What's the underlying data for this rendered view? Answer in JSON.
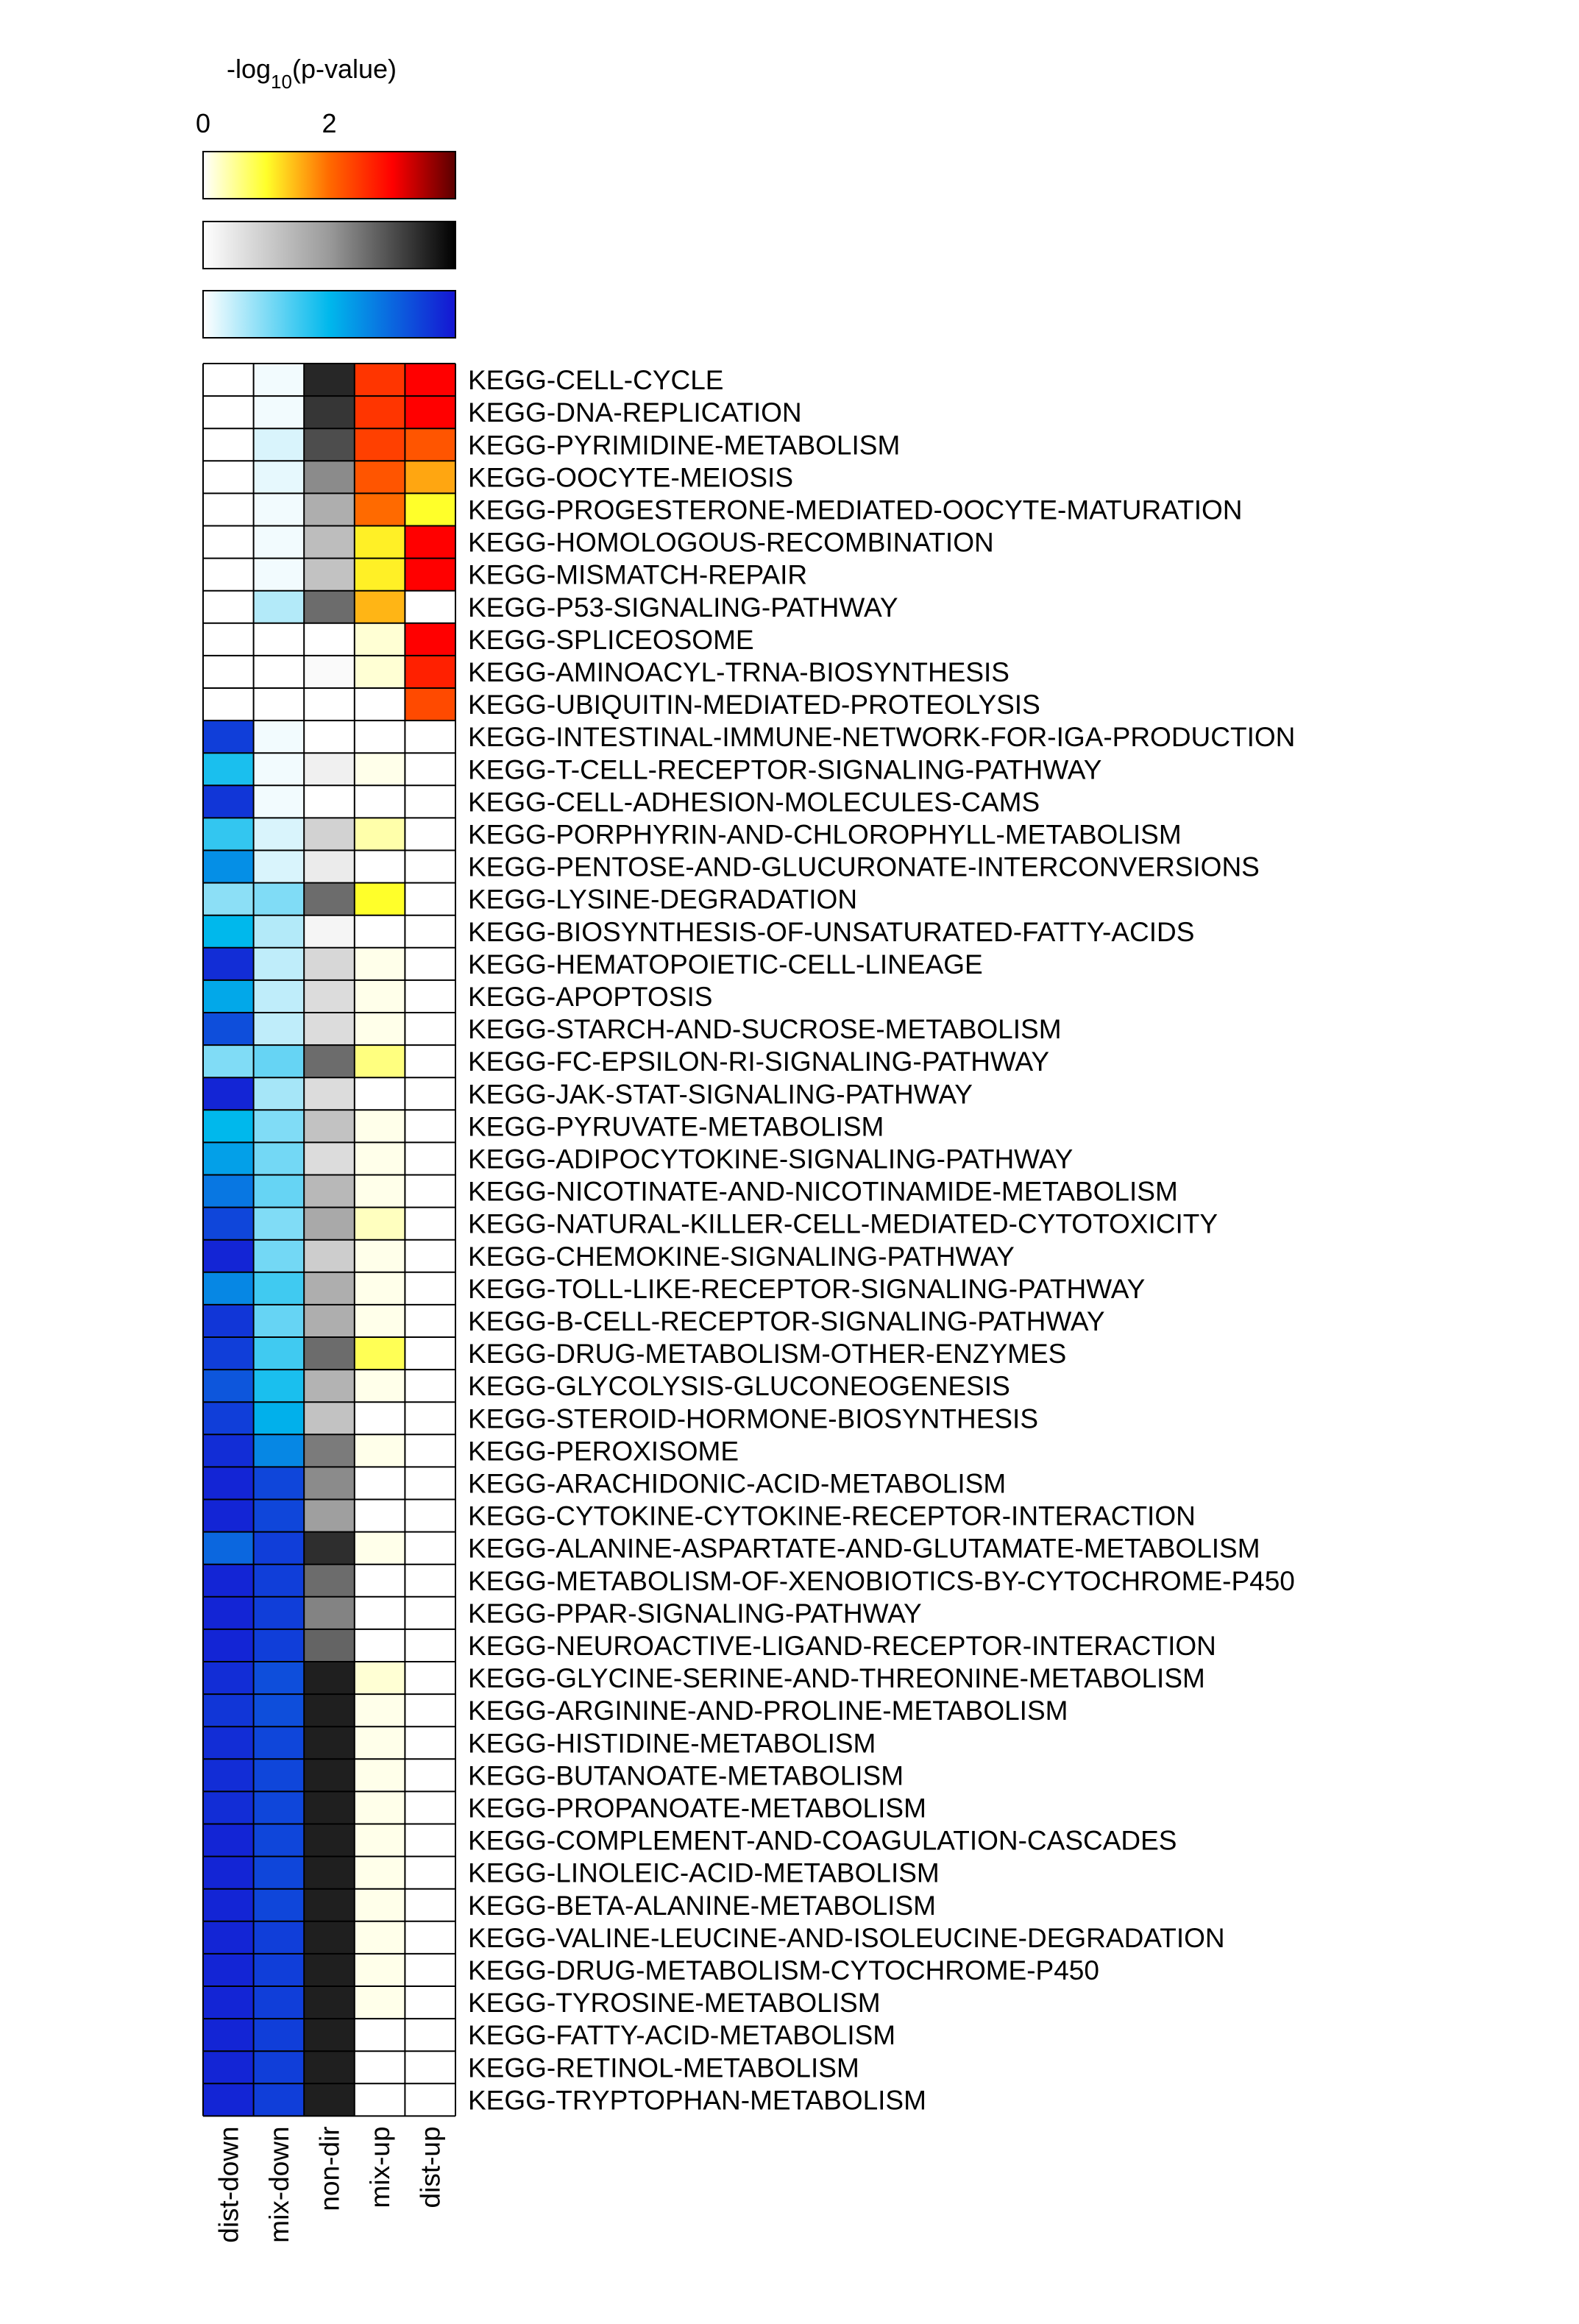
{
  "chart_data": {
    "type": "heatmap",
    "legend_title_prefix": "-log",
    "legend_title_sub": "10",
    "legend_title_suffix": "(p-value)",
    "legend_ticks": [
      "0",
      "2"
    ],
    "legend_max": 4,
    "scales": {
      "warm": [
        "#ffffff",
        "#ffff2a",
        "#ff6a00",
        "#ff0000",
        "#5a0000"
      ],
      "gray": [
        "#ffffff",
        "#9a9a9a",
        "#000000"
      ],
      "blue": [
        "#ffffff",
        "#00b8ec",
        "#1515d2"
      ]
    },
    "column_scales": [
      "blue",
      "blue",
      "gray",
      "warm",
      "warm"
    ],
    "columns": [
      "dist-down",
      "mix-down",
      "non-dir",
      "mix-up",
      "dist-up"
    ],
    "rows": [
      "KEGG-CELL-CYCLE",
      "KEGG-DNA-REPLICATION",
      "KEGG-PYRIMIDINE-METABOLISM",
      "KEGG-OOCYTE-MEIOSIS",
      "KEGG-PROGESTERONE-MEDIATED-OOCYTE-MATURATION",
      "KEGG-HOMOLOGOUS-RECOMBINATION",
      "KEGG-MISMATCH-REPAIR",
      "KEGG-P53-SIGNALING-PATHWAY",
      "KEGG-SPLICEOSOME",
      "KEGG-AMINOACYL-TRNA-BIOSYNTHESIS",
      "KEGG-UBIQUITIN-MEDIATED-PROTEOLYSIS",
      "KEGG-INTESTINAL-IMMUNE-NETWORK-FOR-IGA-PRODUCTION",
      "KEGG-T-CELL-RECEPTOR-SIGNALING-PATHWAY",
      "KEGG-CELL-ADHESION-MOLECULES-CAMS",
      "KEGG-PORPHYRIN-AND-CHLOROPHYLL-METABOLISM",
      "KEGG-PENTOSE-AND-GLUCURONATE-INTERCONVERSIONS",
      "KEGG-LYSINE-DEGRADATION",
      "KEGG-BIOSYNTHESIS-OF-UNSATURATED-FATTY-ACIDS",
      "KEGG-HEMATOPOIETIC-CELL-LINEAGE",
      "KEGG-APOPTOSIS",
      "KEGG-STARCH-AND-SUCROSE-METABOLISM",
      "KEGG-FC-EPSILON-RI-SIGNALING-PATHWAY",
      "KEGG-JAK-STAT-SIGNALING-PATHWAY",
      "KEGG-PYRUVATE-METABOLISM",
      "KEGG-ADIPOCYTOKINE-SIGNALING-PATHWAY",
      "KEGG-NICOTINATE-AND-NICOTINAMIDE-METABOLISM",
      "KEGG-NATURAL-KILLER-CELL-MEDIATED-CYTOTOXICITY",
      "KEGG-CHEMOKINE-SIGNALING-PATHWAY",
      "KEGG-TOLL-LIKE-RECEPTOR-SIGNALING-PATHWAY",
      "KEGG-B-CELL-RECEPTOR-SIGNALING-PATHWAY",
      "KEGG-DRUG-METABOLISM-OTHER-ENZYMES",
      "KEGG-GLYCOLYSIS-GLUCONEOGENESIS",
      "KEGG-STEROID-HORMONE-BIOSYNTHESIS",
      "KEGG-PEROXISOME",
      "KEGG-ARACHIDONIC-ACID-METABOLISM",
      "KEGG-CYTOKINE-CYTOKINE-RECEPTOR-INTERACTION",
      "KEGG-ALANINE-ASPARTATE-AND-GLUTAMATE-METABOLISM",
      "KEGG-METABOLISM-OF-XENOBIOTICS-BY-CYTOCHROME-P450",
      "KEGG-PPAR-SIGNALING-PATHWAY",
      "KEGG-NEUROACTIVE-LIGAND-RECEPTOR-INTERACTION",
      "KEGG-GLYCINE-SERINE-AND-THREONINE-METABOLISM",
      "KEGG-ARGININE-AND-PROLINE-METABOLISM",
      "KEGG-HISTIDINE-METABOLISM",
      "KEGG-BUTANOATE-METABOLISM",
      "KEGG-PROPANOATE-METABOLISM",
      "KEGG-COMPLEMENT-AND-COAGULATION-CASCADES",
      "KEGG-LINOLEIC-ACID-METABOLISM",
      "KEGG-BETA-ALANINE-METABOLISM",
      "KEGG-VALINE-LEUCINE-AND-ISOLEUCINE-DEGRADATION",
      "KEGG-DRUG-METABOLISM-CYTOCHROME-P450",
      "KEGG-TYROSINE-METABOLISM",
      "KEGG-FATTY-ACID-METABOLISM",
      "KEGG-RETINOL-METABOLISM",
      "KEGG-TRYPTOPHAN-METABOLISM"
    ],
    "values": [
      [
        0.0,
        0.1,
        3.5,
        2.5,
        3.0
      ],
      [
        0.0,
        0.1,
        3.3,
        2.5,
        3.0
      ],
      [
        0.0,
        0.3,
        3.0,
        2.4,
        2.2
      ],
      [
        0.0,
        0.2,
        2.2,
        2.2,
        1.6
      ],
      [
        0.0,
        0.1,
        1.6,
        2.0,
        1.0
      ],
      [
        0.0,
        0.1,
        1.3,
        1.1,
        3.0
      ],
      [
        0.0,
        0.1,
        1.2,
        1.1,
        3.0
      ],
      [
        0.0,
        0.6,
        2.6,
        1.5,
        0.0
      ],
      [
        0.0,
        0.0,
        0.0,
        0.2,
        3.0
      ],
      [
        0.0,
        0.0,
        0.1,
        0.2,
        2.7
      ],
      [
        0.0,
        0.0,
        0.0,
        0.0,
        2.3
      ],
      [
        3.5,
        0.1,
        0.0,
        0.0,
        0.0
      ],
      [
        1.8,
        0.1,
        0.3,
        0.1,
        0.0
      ],
      [
        3.6,
        0.1,
        0.0,
        0.0,
        0.0
      ],
      [
        1.6,
        0.3,
        0.9,
        0.4,
        0.0
      ],
      [
        2.5,
        0.3,
        0.4,
        0.0,
        0.0
      ],
      [
        0.9,
        1.0,
        2.6,
        1.0,
        0.0
      ],
      [
        2.0,
        0.6,
        0.2,
        0.0,
        0.0
      ],
      [
        3.7,
        0.5,
        0.8,
        0.1,
        0.0
      ],
      [
        2.2,
        0.5,
        0.7,
        0.1,
        0.0
      ],
      [
        3.3,
        0.5,
        0.7,
        0.1,
        0.0
      ],
      [
        1.0,
        1.2,
        2.6,
        0.6,
        0.0
      ],
      [
        3.8,
        0.7,
        0.7,
        0.0,
        0.0
      ],
      [
        2.0,
        1.0,
        1.2,
        0.1,
        0.0
      ],
      [
        2.3,
        1.1,
        0.7,
        0.1,
        0.0
      ],
      [
        2.8,
        1.2,
        1.4,
        0.1,
        0.0
      ],
      [
        3.4,
        1.0,
        1.7,
        0.3,
        0.0
      ],
      [
        3.8,
        1.1,
        1.0,
        0.1,
        0.0
      ],
      [
        2.6,
        1.5,
        1.6,
        0.1,
        0.0
      ],
      [
        3.6,
        1.2,
        1.6,
        0.1,
        0.0
      ],
      [
        3.5,
        1.5,
        2.6,
        0.8,
        0.0
      ],
      [
        3.2,
        1.8,
        1.5,
        0.1,
        0.0
      ],
      [
        3.5,
        2.1,
        1.2,
        0.0,
        0.0
      ],
      [
        3.7,
        2.6,
        2.4,
        0.1,
        0.0
      ],
      [
        3.8,
        3.4,
        2.2,
        0.0,
        0.0
      ],
      [
        3.8,
        3.4,
        1.9,
        0.0,
        0.0
      ],
      [
        3.0,
        3.5,
        3.4,
        0.1,
        0.0
      ],
      [
        3.8,
        3.5,
        2.6,
        0.0,
        0.0
      ],
      [
        3.8,
        3.5,
        2.3,
        0.0,
        0.0
      ],
      [
        3.8,
        3.5,
        2.7,
        0.0,
        0.0
      ],
      [
        3.7,
        3.3,
        3.6,
        0.2,
        0.0
      ],
      [
        3.6,
        3.3,
        3.6,
        0.1,
        0.0
      ],
      [
        3.7,
        3.4,
        3.6,
        0.1,
        0.0
      ],
      [
        3.7,
        3.4,
        3.6,
        0.1,
        0.0
      ],
      [
        3.7,
        3.4,
        3.6,
        0.1,
        0.0
      ],
      [
        3.8,
        3.4,
        3.6,
        0.1,
        0.0
      ],
      [
        3.8,
        3.4,
        3.6,
        0.1,
        0.0
      ],
      [
        3.8,
        3.4,
        3.6,
        0.1,
        0.0
      ],
      [
        3.8,
        3.5,
        3.6,
        0.1,
        0.0
      ],
      [
        3.8,
        3.5,
        3.6,
        0.1,
        0.0
      ],
      [
        3.8,
        3.5,
        3.6,
        0.1,
        0.0
      ],
      [
        3.8,
        3.5,
        3.6,
        0.0,
        0.0
      ],
      [
        3.8,
        3.5,
        3.6,
        0.0,
        0.0
      ],
      [
        3.8,
        3.5,
        3.6,
        0.0,
        0.0
      ]
    ]
  }
}
